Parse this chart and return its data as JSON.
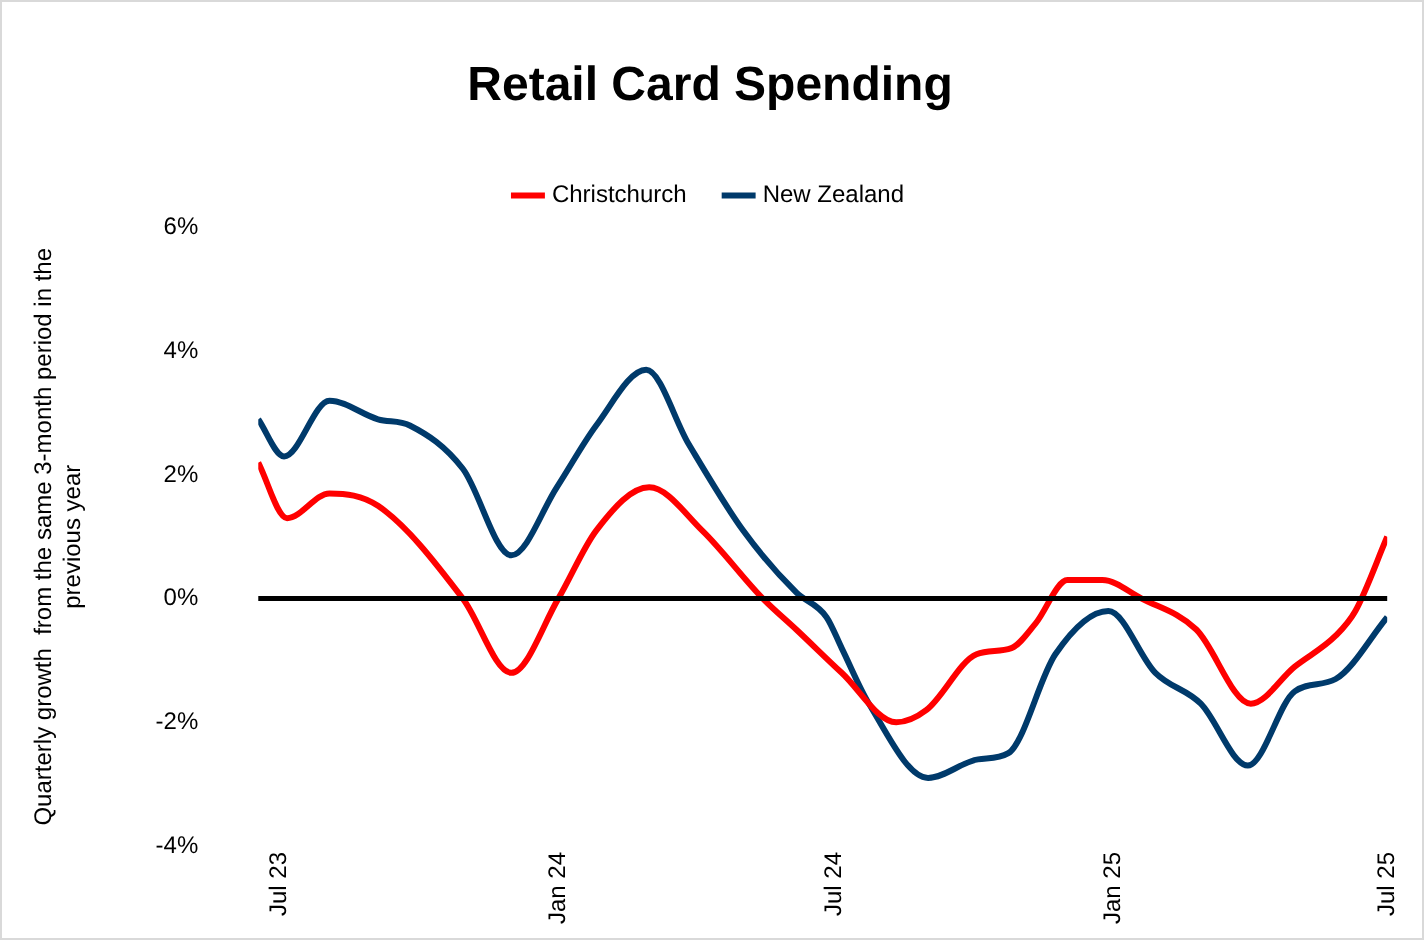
{
  "chart_data": {
    "type": "line",
    "title": "Retail Card Spending",
    "ylabel": "Quarterly growth  from the same 3-month period in the previous year",
    "series": [
      {
        "name": "Christchurch",
        "color": "#ff0000",
        "x": [
          "2023-06-17",
          "2023-07-06",
          "2023-08-03",
          "2023-09-04",
          "2023-10-30",
          "2023-12-01",
          "2024-01-01",
          "2024-01-26",
          "2024-03-01",
          "2024-04-05",
          "2024-05-15",
          "2024-06-06",
          "2024-07-06",
          "2024-08-11",
          "2024-08-31",
          "2024-10-03",
          "2024-10-26",
          "2024-11-11",
          "2024-12-02",
          "2024-12-25",
          "2025-01-20",
          "2025-02-25",
          "2025-04-02",
          "2025-05-01",
          "2025-05-28",
          "2025-06-10",
          "2025-07-01"
        ],
        "values": [
          2.2,
          1.3,
          1.7,
          1.5,
          0.0,
          -1.2,
          0.0,
          1.1,
          1.8,
          1.1,
          0.0,
          -0.5,
          -1.2,
          -2.0,
          -1.8,
          -0.9,
          -0.8,
          -0.4,
          0.3,
          0.3,
          0.0,
          -0.5,
          -1.7,
          -1.1,
          -0.6,
          -0.2,
          1.0
        ]
      },
      {
        "name": "New Zealand",
        "color": "#003a6b",
        "x": [
          "2023-06-17",
          "2023-07-04",
          "2023-08-03",
          "2023-09-04",
          "2023-09-25",
          "2023-10-30",
          "2023-12-01",
          "2023-12-31",
          "2024-01-26",
          "2024-02-28",
          "2024-03-27",
          "2024-05-02",
          "2024-06-06",
          "2024-06-26",
          "2024-07-06",
          "2024-07-24",
          "2024-09-01",
          "2024-10-04",
          "2024-10-24",
          "2024-11-24",
          "2024-12-29",
          "2025-01-29",
          "2025-02-28",
          "2025-03-31",
          "2025-05-01",
          "2025-05-28",
          "2025-07-01"
        ],
        "values": [
          2.9,
          2.3,
          3.2,
          2.9,
          2.8,
          2.1,
          0.7,
          1.8,
          2.8,
          3.7,
          2.5,
          1.1,
          0.1,
          -0.3,
          -0.8,
          -1.7,
          -2.9,
          -2.6,
          -2.5,
          -0.9,
          -0.2,
          -1.2,
          -1.7,
          -2.7,
          -1.5,
          -1.3,
          -0.3
        ]
      }
    ],
    "xlim": [
      "2023-06-17",
      "2025-07-01"
    ],
    "xticks": [
      {
        "value": "2023-07-01",
        "label": "Jul 23"
      },
      {
        "value": "2024-01-01",
        "label": "Jan 24"
      },
      {
        "value": "2024-07-01",
        "label": "Jul 24"
      },
      {
        "value": "2025-01-01",
        "label": "Jan 25"
      },
      {
        "value": "2025-07-01",
        "label": "Jul 25"
      }
    ],
    "ylim": [
      -4,
      6
    ],
    "yticks": [
      {
        "value": -4,
        "label": "-4%"
      },
      {
        "value": -2,
        "label": "-2%"
      },
      {
        "value": 0,
        "label": "0%"
      },
      {
        "value": 2,
        "label": "2%"
      },
      {
        "value": 4,
        "label": "4%"
      },
      {
        "value": 6,
        "label": "6%"
      }
    ],
    "ref_lines": [
      {
        "axis": "y",
        "value": 0,
        "color": "#000000"
      }
    ],
    "grid": false,
    "legend": "top"
  }
}
